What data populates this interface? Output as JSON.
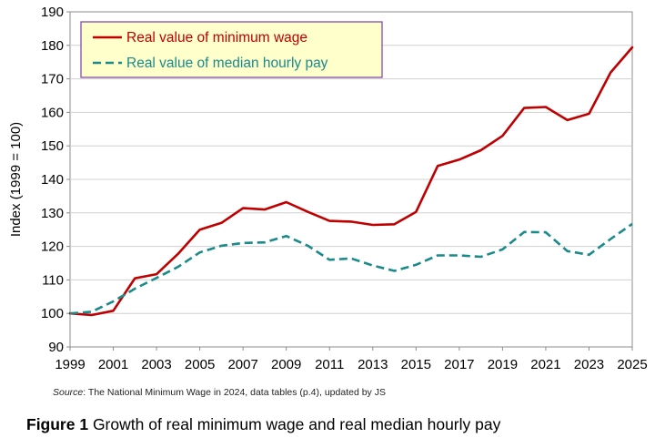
{
  "chart_data": {
    "type": "line",
    "title": "",
    "xlabel": "",
    "ylabel": "Index (1999 = 100)",
    "xlim": [
      1999,
      2025
    ],
    "ylim": [
      90,
      190
    ],
    "x_ticks": [
      "1999",
      "2001",
      "2003",
      "2005",
      "2007",
      "2009",
      "2011",
      "2013",
      "2015",
      "2017",
      "2019",
      "2021",
      "2023",
      "2025"
    ],
    "y_ticks": [
      "90",
      "100",
      "110",
      "120",
      "130",
      "140",
      "150",
      "160",
      "170",
      "180",
      "190"
    ],
    "grid": true,
    "legend_position": "top-left",
    "x": [
      1999,
      2000,
      2001,
      2002,
      2003,
      2004,
      2005,
      2006,
      2007,
      2008,
      2009,
      2010,
      2011,
      2012,
      2013,
      2014,
      2015,
      2016,
      2017,
      2018,
      2019,
      2020,
      2021,
      2022,
      2023,
      2024,
      2025
    ],
    "series": [
      {
        "name": "Real value of minimum wage",
        "color": "#c00000",
        "style": "solid",
        "values": [
          100,
          99.5,
          100.8,
          110.5,
          111.7,
          117.8,
          125,
          127,
          131.4,
          131,
          133.2,
          130.3,
          127.6,
          127.4,
          126.4,
          126.6,
          130.3,
          144,
          145.9,
          148.7,
          153,
          161.3,
          161.6,
          157.7,
          159.6,
          171.9,
          179.4
        ]
      },
      {
        "name": "Real value of median hourly pay",
        "color": "#1a8a8a",
        "style": "dashed",
        "values": [
          100,
          100.5,
          103.6,
          107.4,
          110.6,
          113.9,
          118.2,
          120.2,
          121,
          121.2,
          123.1,
          120.2,
          116,
          116.4,
          114.3,
          112.7,
          114.5,
          117.3,
          117.3,
          116.9,
          119.1,
          124.3,
          124.2,
          118.6,
          117.5,
          122.2,
          126.7
        ]
      }
    ]
  },
  "source": {
    "label": "Source",
    "text": ": The National Minimum Wage in 2024, data tables (p.4), updated by JS"
  },
  "caption": {
    "label": "Figure 1",
    "text": " Growth of real minimum wage and real median hourly pay"
  }
}
